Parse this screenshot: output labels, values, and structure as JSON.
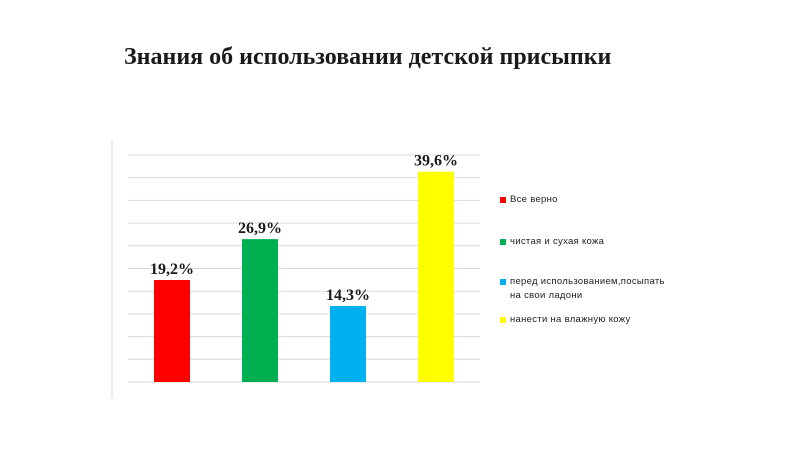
{
  "title": "Знания об использовании детской присыпки",
  "chart_data": {
    "type": "bar",
    "categories": [
      "Все верно",
      "чистая и сухая кожа",
      "перед использованием,посыпать\nна свои ладони",
      "нанести на влажную кожу"
    ],
    "values": [
      19.2,
      26.9,
      14.3,
      39.6
    ],
    "value_labels": [
      "19,2%",
      "26,9%",
      "14,3%",
      "39,6%"
    ],
    "colors": [
      "#ff0000",
      "#00b050",
      "#00b0f0",
      "#ffff00"
    ],
    "title": "Знания об использовании детской присыпки",
    "xlabel": "",
    "ylabel": "",
    "grid": true,
    "legend_position": "right"
  }
}
